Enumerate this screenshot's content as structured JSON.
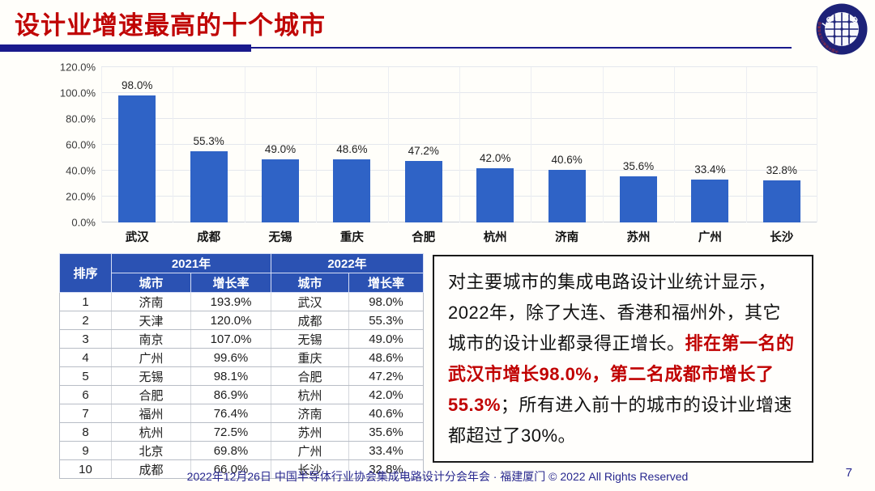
{
  "title": "设计业增速最高的十个城市",
  "logo": {
    "arc_text": "ICCAD",
    "ring_text": "中国半导体行业协会集成电路设计分会"
  },
  "chart_data": {
    "type": "bar",
    "title": "",
    "categories": [
      "武汉",
      "成都",
      "无锡",
      "重庆",
      "合肥",
      "杭州",
      "济南",
      "苏州",
      "广州",
      "长沙"
    ],
    "values": [
      98.0,
      55.3,
      49.0,
      48.6,
      47.2,
      42.0,
      40.6,
      35.6,
      33.4,
      32.8
    ],
    "value_labels": [
      "98.0%",
      "55.3%",
      "49.0%",
      "48.6%",
      "47.2%",
      "42.0%",
      "40.6%",
      "35.6%",
      "33.4%",
      "32.8%"
    ],
    "xlabel": "",
    "ylabel": "",
    "ylim": [
      0,
      120
    ],
    "ytick_step": 20,
    "ytick_labels": [
      "0.0%",
      "20.0%",
      "40.0%",
      "60.0%",
      "80.0%",
      "100.0%",
      "120.0%"
    ],
    "grid": true,
    "legend": false
  },
  "table": {
    "rank_header": "排序",
    "group_headers": [
      "2021年",
      "2022年"
    ],
    "sub_headers": [
      "城市",
      "增长率",
      "城市",
      "增长率"
    ],
    "rows": [
      [
        "1",
        "济南",
        "193.9%",
        "武汉",
        "98.0%"
      ],
      [
        "2",
        "天津",
        "120.0%",
        "成都",
        "55.3%"
      ],
      [
        "3",
        "南京",
        "107.0%",
        "无锡",
        "49.0%"
      ],
      [
        "4",
        "广州",
        "99.6%",
        "重庆",
        "48.6%"
      ],
      [
        "5",
        "无锡",
        "98.1%",
        "合肥",
        "47.2%"
      ],
      [
        "6",
        "合肥",
        "86.9%",
        "杭州",
        "42.0%"
      ],
      [
        "7",
        "福州",
        "76.4%",
        "济南",
        "40.6%"
      ],
      [
        "8",
        "杭州",
        "72.5%",
        "苏州",
        "35.6%"
      ],
      [
        "9",
        "北京",
        "69.8%",
        "广州",
        "33.4%"
      ],
      [
        "10",
        "成都",
        "66.0%",
        "长沙",
        "32.8%"
      ]
    ]
  },
  "commentary": {
    "segments": [
      {
        "text": "对主要城市的集成电路设计业统计显示，2022年，除了大连、香港和福州外，其它城市的设计业都录得正增长。",
        "emphasis": false
      },
      {
        "text": "排在第一名的武汉市增长98.0%，第二名成都市增长了55.3%",
        "emphasis": true
      },
      {
        "text": "；所有进入前十的城市的设计业增速都超过了30%。",
        "emphasis": false
      }
    ]
  },
  "footer": {
    "text": "2022年12月26日 中国半导体行业协会集成电路设计分会年会 · 福建厦门 © 2022 All Rights Reserved",
    "page": "7"
  },
  "colors": {
    "title": "#C00505",
    "rule": "#1A1A8C",
    "bar": "#2F63C6",
    "table_header": "#2B52B3",
    "emphasis": "#C00000",
    "footer_text": "#28288F"
  }
}
